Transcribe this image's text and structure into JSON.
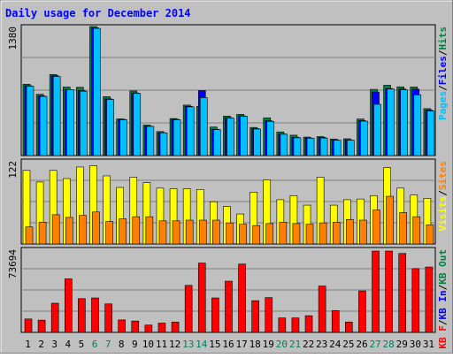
{
  "title": "Daily usage for December 2014",
  "colors": {
    "frame_bg": "#C0C0C0",
    "plot_bg": "#C0C0C0",
    "title": "#0000FF",
    "hits": "#008040",
    "files": "#0000FF",
    "pages": "#00C0FF",
    "visits": "#FFFF00",
    "sites": "#FF8000",
    "kb_in": "#FF0000",
    "weekend_day": "#00805C",
    "weekday_day": "#000000",
    "legend_sep": "#000000"
  },
  "chart_data": [
    {
      "type": "bar",
      "name": "hits-files-pages",
      "max_label": "1380",
      "ylim": [
        0,
        1380
      ],
      "categories": [
        "1",
        "2",
        "3",
        "4",
        "5",
        "6",
        "7",
        "8",
        "9",
        "10",
        "11",
        "12",
        "13",
        "14",
        "15",
        "16",
        "17",
        "18",
        "19",
        "20",
        "21",
        "22",
        "23",
        "24",
        "25",
        "26",
        "27",
        "28",
        "29",
        "30",
        "31"
      ],
      "series": [
        {
          "name": "Hits",
          "color_key": "hits",
          "values": [
            763,
            655,
            867,
            733,
            730,
            1380,
            630,
            392,
            691,
            326,
            257,
            396,
            540,
            526,
            305,
            422,
            440,
            301,
            403,
            253,
            218,
            198,
            203,
            177,
            180,
            391,
            708,
            752,
            735,
            733,
            502
          ]
        },
        {
          "name": "Files",
          "color_key": "files",
          "values": [
            747,
            638,
            853,
            706,
            694,
            1366,
            606,
            388,
            670,
            315,
            245,
            388,
            527,
            695,
            281,
            405,
            425,
            290,
            372,
            232,
            196,
            188,
            194,
            166,
            168,
            373,
            680,
            716,
            711,
            710,
            486
          ]
        },
        {
          "name": "Pages",
          "color_key": "pages",
          "values": [
            742,
            633,
            846,
            704,
            688,
            1360,
            600,
            383,
            664,
            312,
            243,
            383,
            521,
            620,
            278,
            400,
            420,
            284,
            365,
            228,
            190,
            186,
            188,
            165,
            165,
            368,
            548,
            711,
            703,
            650,
            477
          ]
        }
      ],
      "legend": [
        "Pages",
        "Files",
        "Hits"
      ],
      "legend_placement": "right"
    },
    {
      "type": "bar",
      "name": "visits-sites",
      "max_label": "122",
      "ylim": [
        0,
        122
      ],
      "categories": [
        "1",
        "2",
        "3",
        "4",
        "5",
        "6",
        "7",
        "8",
        "9",
        "10",
        "11",
        "12",
        "13",
        "14",
        "15",
        "16",
        "17",
        "18",
        "19",
        "20",
        "21",
        "22",
        "23",
        "24",
        "25",
        "26",
        "27",
        "28",
        "29",
        "30",
        "31"
      ],
      "series": [
        {
          "name": "Visits",
          "color_key": "visits",
          "values": [
            108,
            91,
            108,
            96,
            113,
            115,
            100,
            83,
            98,
            90,
            82,
            81,
            81,
            80,
            62,
            55,
            44,
            76,
            94,
            65,
            71,
            57,
            98,
            57,
            65,
            66,
            71,
            112,
            82,
            72,
            67
          ]
        },
        {
          "name": "Sites",
          "color_key": "sites",
          "values": [
            25,
            32,
            43,
            39,
            42,
            47,
            33,
            37,
            40,
            40,
            34,
            34,
            35,
            35,
            35,
            31,
            29,
            27,
            30,
            32,
            30,
            29,
            31,
            32,
            36,
            35,
            50,
            70,
            46,
            40,
            28
          ]
        }
      ],
      "legend": [
        "Visits",
        "Sites"
      ],
      "legend_placement": "right"
    },
    {
      "type": "bar",
      "name": "kb",
      "max_label": "73694",
      "ylim": [
        0,
        73694
      ],
      "categories": [
        "1",
        "2",
        "3",
        "4",
        "5",
        "6",
        "7",
        "8",
        "9",
        "10",
        "11",
        "12",
        "13",
        "14",
        "15",
        "16",
        "17",
        "18",
        "19",
        "20",
        "21",
        "22",
        "23",
        "24",
        "25",
        "26",
        "27",
        "28",
        "29",
        "30",
        "31"
      ],
      "series": [
        {
          "name": "KB In",
          "color_key": "kb_in",
          "values": [
            0,
            0,
            0,
            0,
            0,
            0,
            0,
            0,
            0,
            0,
            0,
            0,
            0,
            0,
            0,
            0,
            0,
            0,
            0,
            0,
            0,
            0,
            0,
            0,
            0,
            0,
            0,
            0,
            0,
            0,
            0
          ]
        },
        {
          "name": "KB Out",
          "color_key": "kb_out",
          "values": [
            0,
            0,
            0,
            0,
            0,
            0,
            0,
            0,
            0,
            0,
            0,
            0,
            0,
            0,
            0,
            0,
            0,
            0,
            0,
            0,
            0,
            0,
            0,
            0,
            0,
            0,
            0,
            0,
            0,
            0,
            0
          ]
        },
        {
          "name": "KB F",
          "color_key": "kb_in",
          "values": [
            12125,
            11100,
            26400,
            48500,
            30600,
            31200,
            25800,
            11300,
            10300,
            6600,
            8400,
            9300,
            42600,
            62800,
            31200,
            46400,
            61900,
            28700,
            31500,
            13100,
            13100,
            15100,
            42000,
            19700,
            9400,
            37600,
            73694,
            73694,
            71500,
            57800,
            59200
          ]
        }
      ],
      "legend": [
        "KB F",
        "KB In",
        "KB Out"
      ],
      "legend_placement": "right"
    }
  ],
  "x_labels": [
    "1",
    "2",
    "3",
    "4",
    "5",
    "6",
    "7",
    "8",
    "9",
    "10",
    "11",
    "12",
    "13",
    "14",
    "15",
    "16",
    "17",
    "18",
    "19",
    "20",
    "21",
    "22",
    "23",
    "24",
    "25",
    "26",
    "27",
    "28",
    "29",
    "30",
    "31"
  ],
  "weekend_days": [
    6,
    7,
    13,
    14,
    20,
    21,
    27,
    28
  ]
}
